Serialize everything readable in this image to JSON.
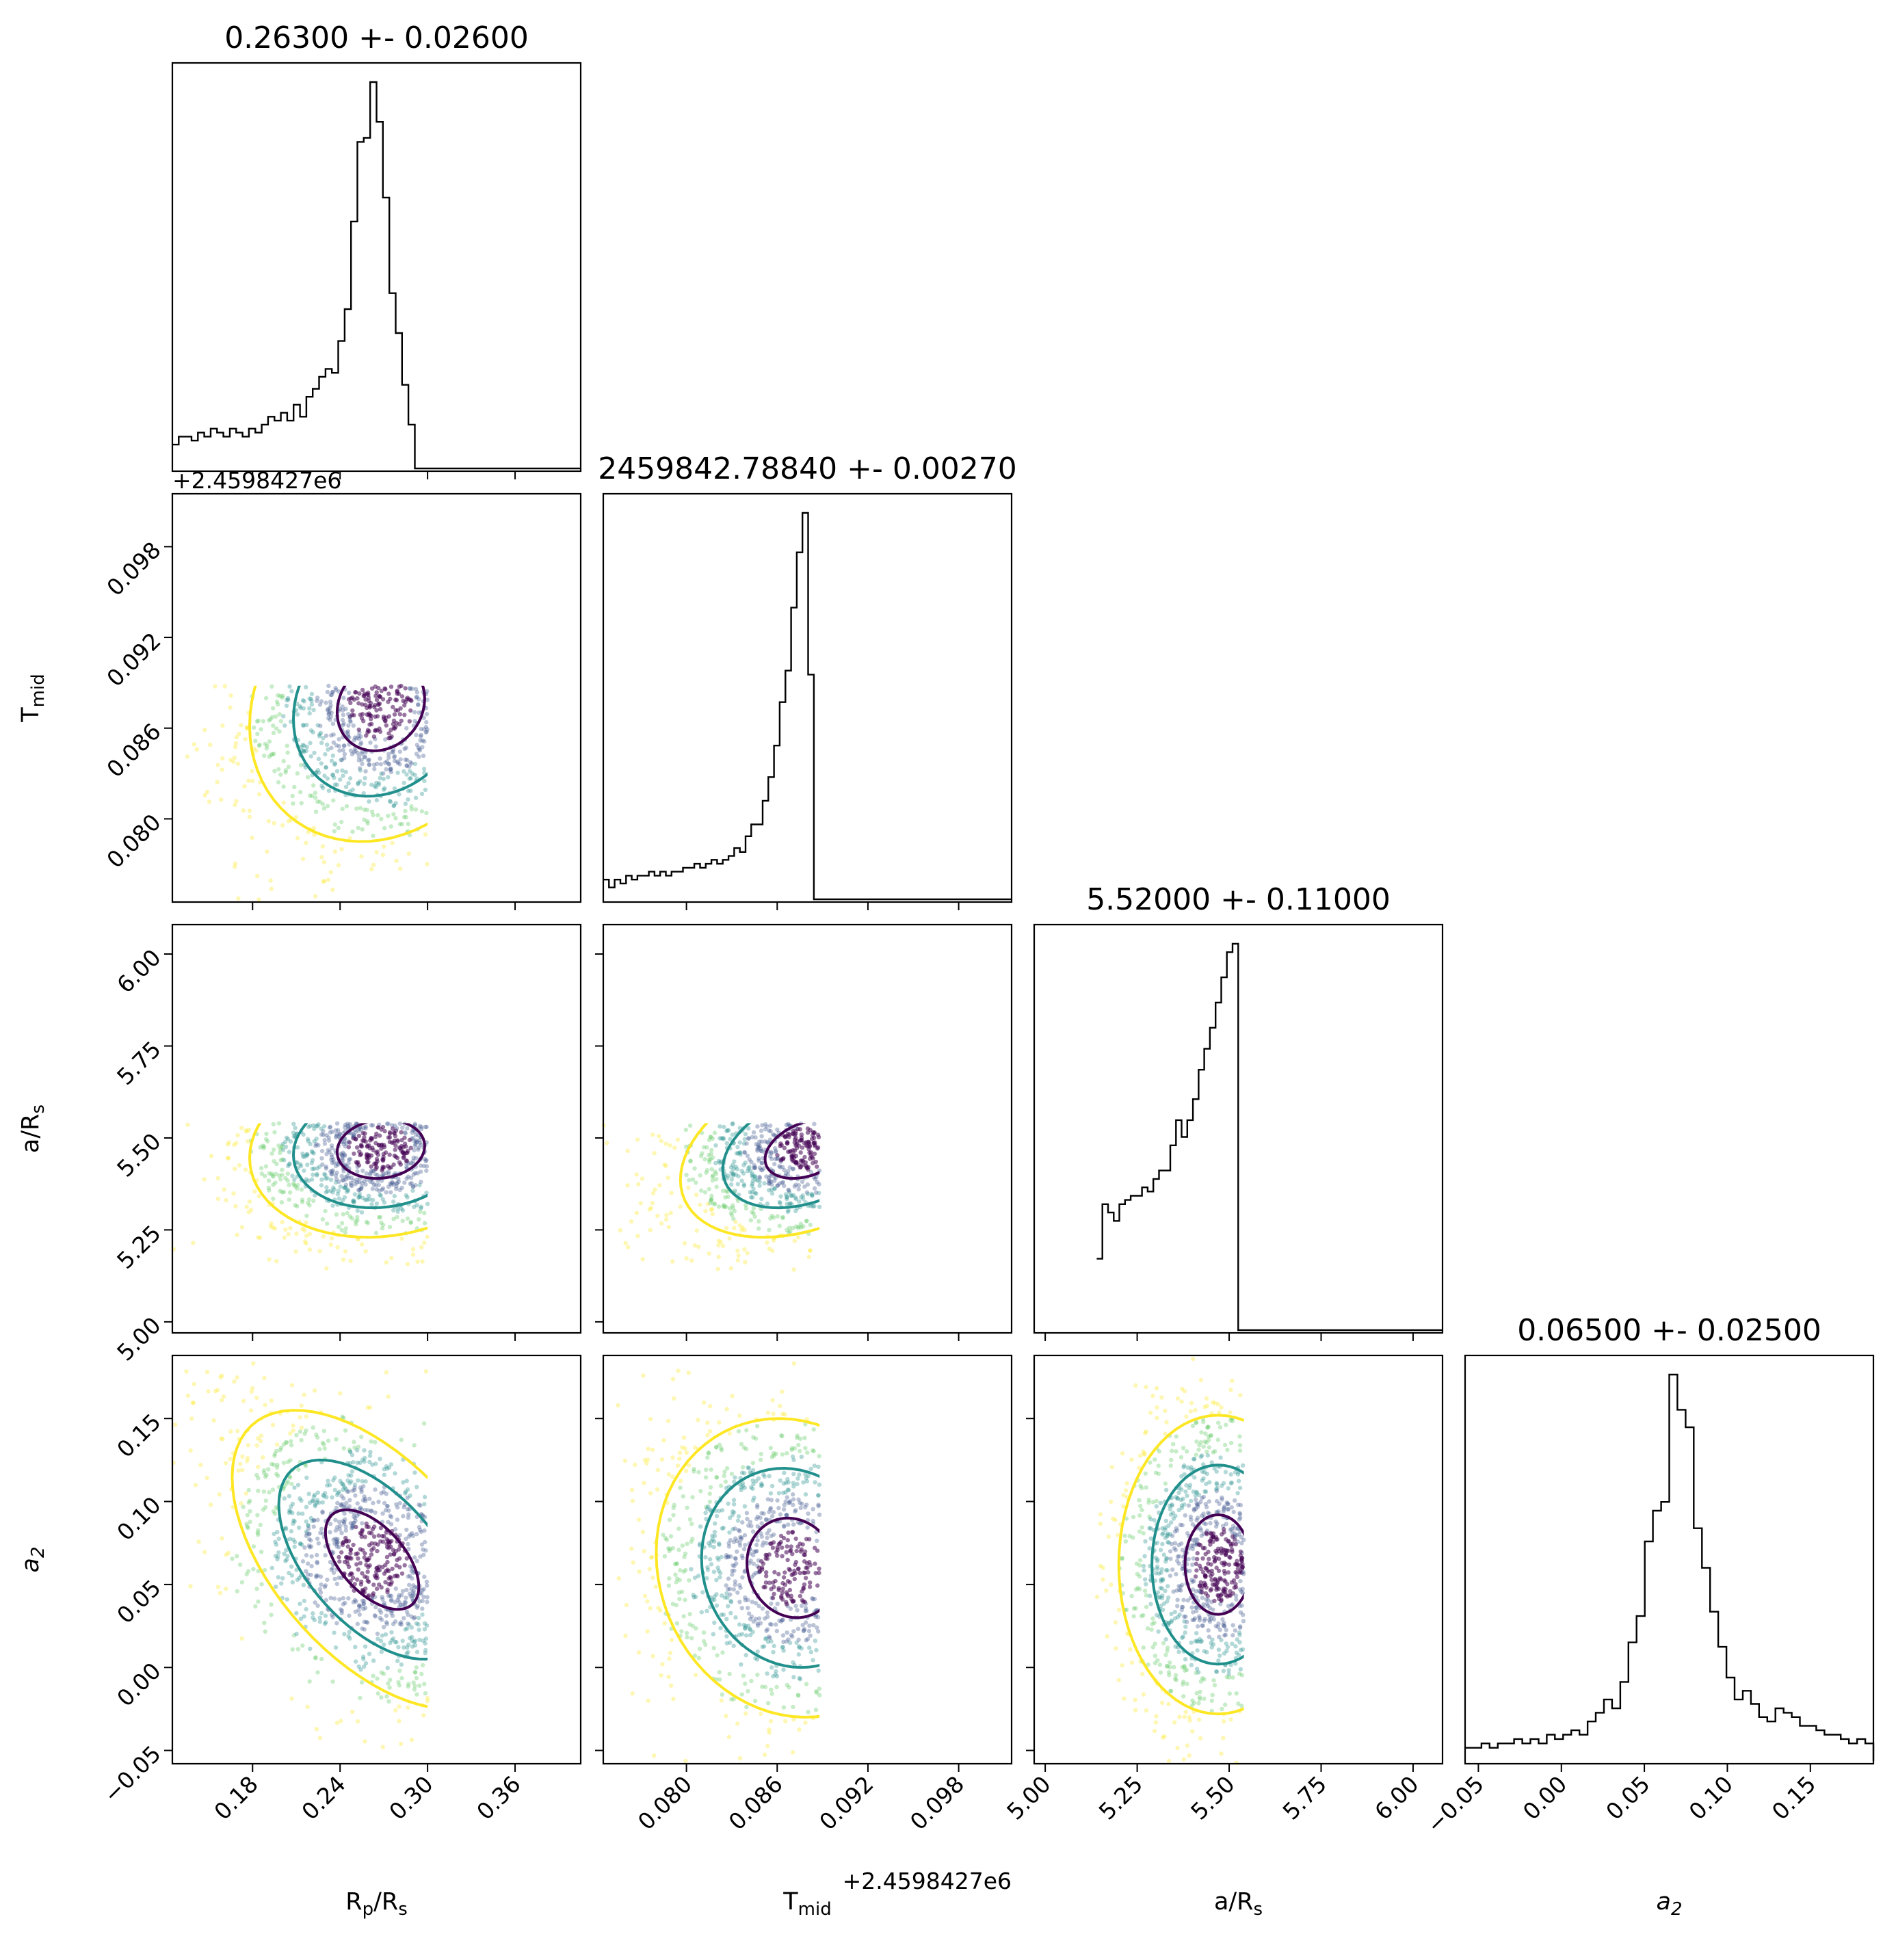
{
  "chart_data": {
    "type": "corner",
    "parameters": [
      {
        "key": "rp",
        "title": "0.26300 +- 0.02600",
        "label_main": "R",
        "label_sub1": "p",
        "label_mid": "/R",
        "label_sub2": "s",
        "range": [
          0.125,
          0.405
        ],
        "ticks": [
          0.18,
          0.24,
          0.3,
          0.36
        ],
        "tick_labels": [
          "0.18",
          "0.24",
          "0.30",
          "0.36"
        ],
        "sample_range": [
          0.125,
          0.3
        ],
        "hist": {
          "edges": [
            0.125,
            0.3
          ],
          "counts": [
            0.06,
            0.08,
            0.08,
            0.07,
            0.09,
            0.08,
            0.1,
            0.09,
            0.08,
            0.1,
            0.09,
            0.08,
            0.1,
            0.09,
            0.11,
            0.13,
            0.12,
            0.14,
            0.12,
            0.16,
            0.13,
            0.18,
            0.2,
            0.23,
            0.25,
            0.24,
            0.32,
            0.4,
            0.62,
            0.82,
            0.83,
            0.97,
            0.87,
            0.68,
            0.44,
            0.34,
            0.21,
            0.11,
            0.0,
            0.0
          ]
        }
      },
      {
        "key": "tmid",
        "title": "2459842.78840 +- 0.00270",
        "label_main": "T",
        "label_sub1": "mid",
        "label_mid": "",
        "label_sub2": "",
        "offset_label": "+2.4598427e6",
        "range": [
          0.0745,
          0.1015
        ],
        "ticks": [
          0.08,
          0.086,
          0.092,
          0.098
        ],
        "tick_labels": [
          "0.080",
          "0.086",
          "0.092",
          "0.098"
        ],
        "sample_range": [
          0.0745,
          0.0888
        ],
        "hist": {
          "edges": [
            0.0745,
            0.0888
          ],
          "counts": [
            0.05,
            0.03,
            0.05,
            0.04,
            0.06,
            0.05,
            0.06,
            0.06,
            0.07,
            0.06,
            0.07,
            0.06,
            0.07,
            0.07,
            0.08,
            0.08,
            0.09,
            0.08,
            0.09,
            0.1,
            0.09,
            0.1,
            0.11,
            0.13,
            0.12,
            0.16,
            0.19,
            0.19,
            0.25,
            0.31,
            0.39,
            0.5,
            0.58,
            0.74,
            0.88,
            0.98,
            0.57,
            0.0
          ]
        }
      },
      {
        "key": "ars",
        "title": "5.52000 +- 0.11000",
        "label_main": "a/R",
        "label_sub1": "",
        "label_mid": "",
        "label_sub2": "s",
        "range": [
          4.97,
          6.08
        ],
        "ticks": [
          5.0,
          5.25,
          5.5,
          5.75,
          6.0
        ],
        "tick_labels": [
          "5.00",
          "5.25",
          "5.50",
          "5.75",
          "6.00"
        ],
        "sample_range": [
          5.14,
          5.54
        ],
        "hist": {
          "edges": [
            5.14,
            5.54
          ],
          "counts": [
            0.17,
            0.3,
            0.28,
            0.26,
            0.3,
            0.31,
            0.32,
            0.32,
            0.34,
            0.33,
            0.36,
            0.38,
            0.38,
            0.44,
            0.5,
            0.46,
            0.5,
            0.55,
            0.62,
            0.67,
            0.72,
            0.78,
            0.84,
            0.9,
            0.92,
            0.0
          ]
        }
      },
      {
        "key": "a2",
        "title": "0.06500 +- 0.02500",
        "label_main": "a",
        "label_sub1": "2",
        "label_mid": "",
        "label_sub2": "",
        "label_italic": true,
        "range": [
          -0.058,
          0.188
        ],
        "ticks": [
          -0.05,
          0.0,
          0.05,
          0.1,
          0.15
        ],
        "tick_labels": [
          "−0.05",
          "0.00",
          "0.05",
          "0.10",
          "0.15"
        ],
        "sample_range": [
          -0.058,
          0.188
        ],
        "hist": {
          "edges": [
            -0.058,
            0.188
          ],
          "counts": [
            0.03,
            0.03,
            0.04,
            0.03,
            0.04,
            0.04,
            0.05,
            0.04,
            0.05,
            0.04,
            0.06,
            0.05,
            0.06,
            0.07,
            0.06,
            0.09,
            0.11,
            0.14,
            0.12,
            0.18,
            0.27,
            0.33,
            0.5,
            0.57,
            0.59,
            0.88,
            0.8,
            0.76,
            0.53,
            0.44,
            0.34,
            0.26,
            0.19,
            0.14,
            0.16,
            0.13,
            0.1,
            0.09,
            0.12,
            0.11,
            0.1,
            0.08,
            0.08,
            0.07,
            0.06,
            0.06,
            0.05,
            0.04,
            0.05,
            0.04
          ]
        }
      }
    ],
    "pairs": {
      "rp_tmid": {
        "centers": [
          [
            0.268,
            0.0875
          ]
        ],
        "sigmas": [
          [
            0.03,
            0.003
          ]
        ],
        "rho": 0.15
      },
      "rp_ars": {
        "centers": [
          [
            0.268,
            5.47
          ]
        ],
        "sigmas": [
          [
            0.03,
            0.08
          ]
        ],
        "rho": 0.1
      },
      "rp_a2": {
        "centers": [
          [
            0.262,
            0.065
          ]
        ],
        "sigmas": [
          [
            0.032,
            0.03
          ]
        ],
        "rho": -0.55
      },
      "tmid_ars": {
        "centers": [
          [
            0.088,
            5.47
          ]
        ],
        "sigmas": [
          [
            0.0028,
            0.08
          ]
        ],
        "rho": 0.35
      },
      "tmid_a2": {
        "centers": [
          [
            0.087,
            0.06
          ]
        ],
        "sigmas": [
          [
            0.003,
            0.03
          ]
        ],
        "rho": -0.1
      },
      "ars_a2": {
        "centers": [
          [
            5.47,
            0.062
          ]
        ],
        "sigmas": [
          [
            0.09,
            0.03
          ]
        ],
        "rho": 0.0
      }
    },
    "colors": {
      "inner": "#440154",
      "middle": "#21908c",
      "outer": "#fde725",
      "frame": "#000000",
      "hist": "#000000"
    }
  }
}
